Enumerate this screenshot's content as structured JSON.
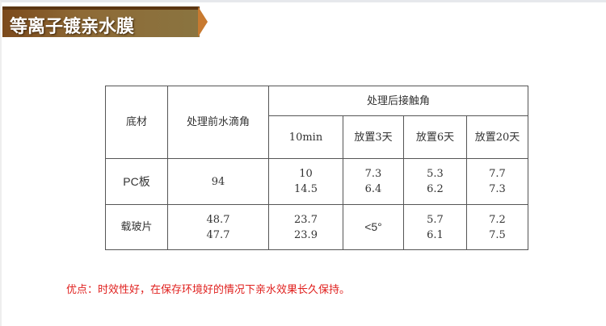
{
  "title": "等离子镀亲水膜",
  "table": {
    "h_substrate": "底材",
    "h_before": "处理前水滴角",
    "h_after": "处理后接触角",
    "sub_headers": [
      "10min",
      "放置3天",
      "放置6天",
      "放置20天"
    ],
    "rows": [
      {
        "substrate": "PC板",
        "before": [
          "94"
        ],
        "cells": [
          [
            "10",
            "14.5"
          ],
          [
            "7.3",
            "6.4"
          ],
          [
            "5.3",
            "6.2"
          ],
          [
            "7.7",
            "7.3"
          ]
        ]
      },
      {
        "substrate": "载玻片",
        "before": [
          "48.7",
          "47.7"
        ],
        "cells": [
          [
            "23.7",
            "23.9"
          ],
          [
            "<5°"
          ],
          [
            "5.7",
            "6.1"
          ],
          [
            "7.2",
            "7.5"
          ]
        ]
      }
    ]
  },
  "note": "优点：时效性好，在保存环境好的情况下亲水效果长久保持。",
  "colors": {
    "banner": "#8a6a36",
    "note": "#e0201e"
  }
}
